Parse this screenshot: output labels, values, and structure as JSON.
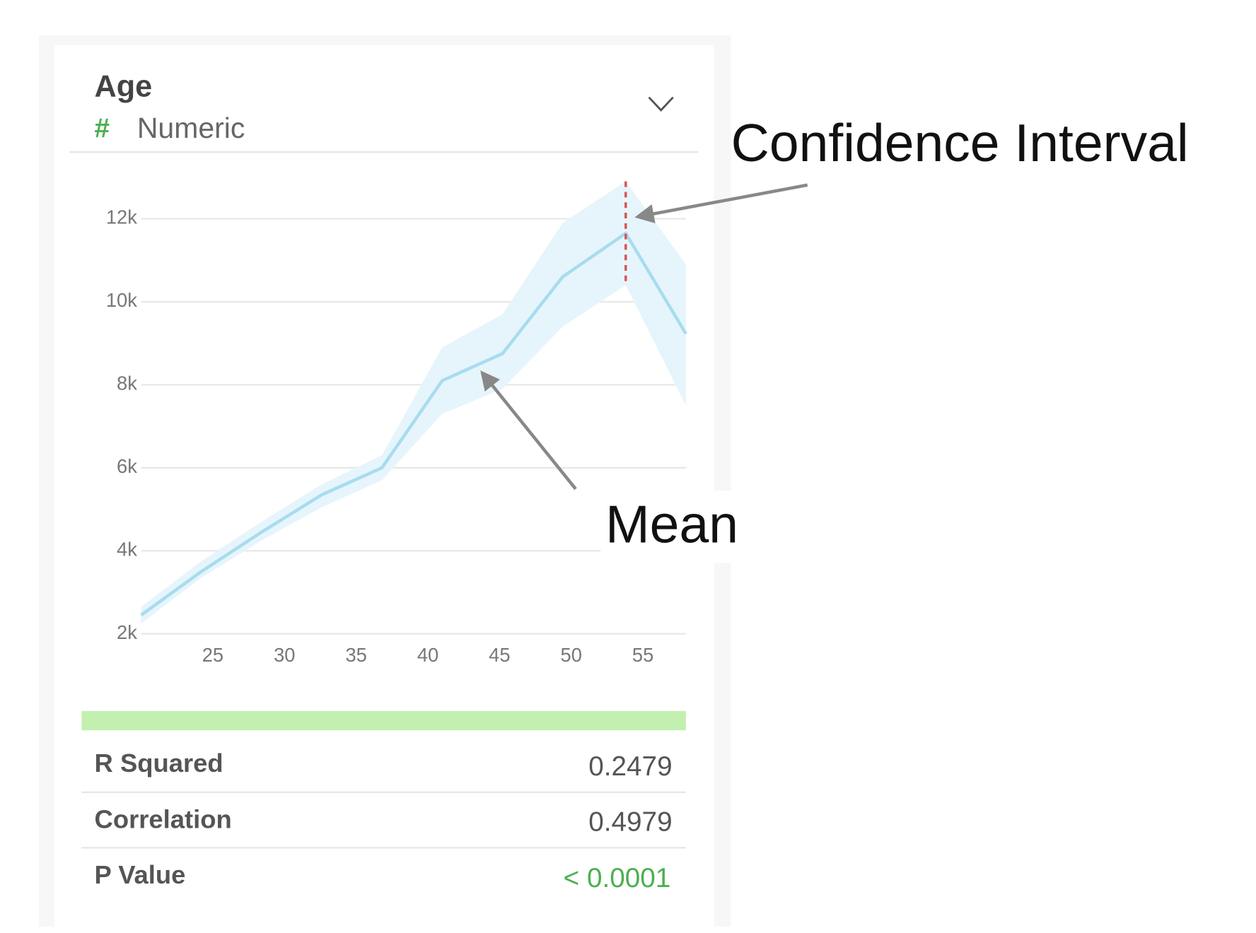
{
  "header": {
    "title": "Age",
    "type_icon": "#",
    "type": "Numeric"
  },
  "chart_data": {
    "type": "line",
    "x": [
      20,
      24.2,
      28.4,
      32.6,
      36.8,
      41,
      45.2,
      49.4,
      53.8,
      58
    ],
    "values": [
      2450,
      3500,
      4450,
      5350,
      6000,
      8100,
      8750,
      10600,
      11650,
      9230
    ],
    "upper": [
      2650,
      3750,
      4700,
      5600,
      6300,
      8900,
      9700,
      11900,
      12900,
      10900
    ],
    "lower": [
      2250,
      3350,
      4250,
      5050,
      5700,
      7300,
      7900,
      9400,
      10400,
      7500
    ],
    "color": "#a8dcef",
    "band_color": "#e6f5fc",
    "ci_marker_color": "#d9534f",
    "xlim": [
      20,
      58
    ],
    "xticks": [
      25,
      30,
      35,
      40,
      45,
      50,
      55
    ],
    "ylim": [
      2000,
      13000
    ],
    "yticks": [
      {
        "value": 2000,
        "label": "2k"
      },
      {
        "value": 4000,
        "label": "4k"
      },
      {
        "value": 6000,
        "label": "6k"
      },
      {
        "value": 8000,
        "label": "8k"
      },
      {
        "value": 10000,
        "label": "10k"
      },
      {
        "value": 12000,
        "label": "12k"
      }
    ],
    "grid": true,
    "annotations": [
      "Confidence Interval",
      "Mean"
    ]
  },
  "stats": {
    "rows": [
      [
        "R Squared",
        "0.2479"
      ],
      [
        "Correlation",
        "0.4979"
      ],
      [
        "P Value",
        "< 0.0001"
      ]
    ]
  }
}
